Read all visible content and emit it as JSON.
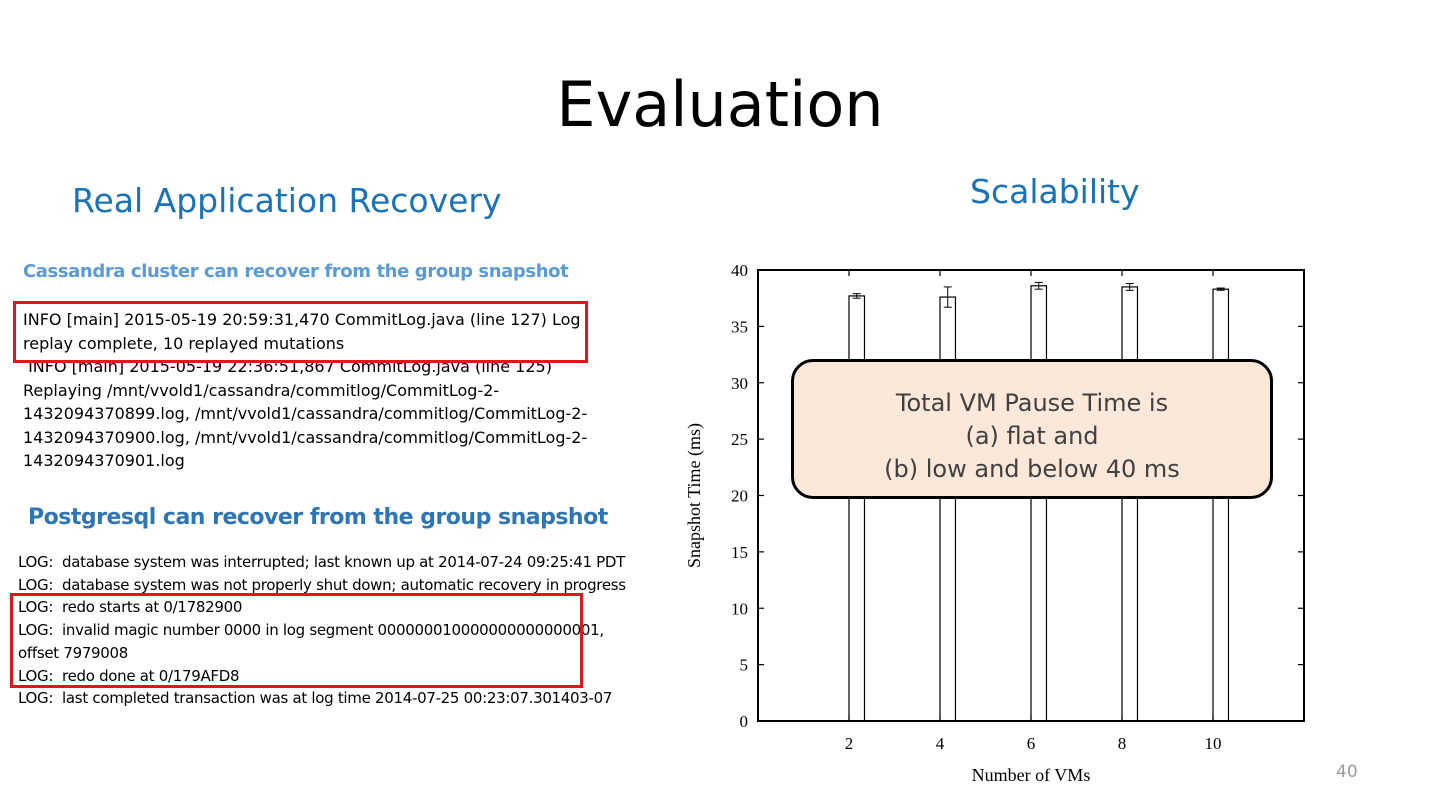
{
  "slide": {
    "title": "Evaluation",
    "left_subtitle": "Real Application Recovery",
    "right_subtitle": "Scalability",
    "page_number": "40"
  },
  "cassandra": {
    "heading": "Cassandra cluster can recover from the group snapshot",
    "lines": [
      "INFO [main] 2015-05-19 20:59:31,470 CommitLog.java (line 127) Log",
      "replay complete, 10 replayed mutations",
      " INFO [main] 2015-05-19 22:36:51,867 CommitLog.java (line 125)",
      "Replaying /mnt/vvold1/cassandra/commitlog/CommitLog-2-",
      "1432094370899.log, /mnt/vvold1/cassandra/commitlog/CommitLog-2-",
      "1432094370900.log, /mnt/vvold1/cassandra/commitlog/CommitLog-2-",
      "1432094370901.log"
    ]
  },
  "postgres": {
    "heading": "Postgresql can recover from the group snapshot",
    "lines": [
      "LOG:  database system was interrupted; last known up at 2014-07-24 09:25:41 PDT",
      "LOG:  database system was not properly shut down; automatic recovery in progress",
      "LOG:  redo starts at 0/1782900",
      "LOG:  invalid magic number 0000 in log segment 000000010000000000000001,",
      "offset 7979008",
      "LOG:  redo done at 0/179AFD8",
      "LOG:  last completed transaction was at log time 2014-07-25 00:23:07.301403-07"
    ]
  },
  "callout": {
    "lines": [
      "Total VM Pause Time is",
      "(a) flat and",
      "(b) low and below 40 ms"
    ]
  },
  "colors": {
    "subtitle_blue": "#1a73b8",
    "highlight_red": "#e0161d",
    "callout_fill": "#fce8d8"
  },
  "chart_data": {
    "type": "bar",
    "categories": [
      "2",
      "4",
      "6",
      "8",
      "10"
    ],
    "values": [
      37.7,
      37.6,
      38.6,
      38.5,
      38.3
    ],
    "error": [
      0.2,
      0.9,
      0.3,
      0.3,
      0.1
    ],
    "xlabel": "Number of VMs",
    "ylabel": "Snapshot Time (ms)",
    "ylim": [
      0,
      40
    ],
    "yticks": [
      0,
      5,
      10,
      15,
      20,
      25,
      30,
      35,
      40
    ],
    "xlim": [
      0,
      12
    ],
    "grid": false,
    "bar_fill": "#ffffff",
    "bar_stroke": "#000000"
  }
}
